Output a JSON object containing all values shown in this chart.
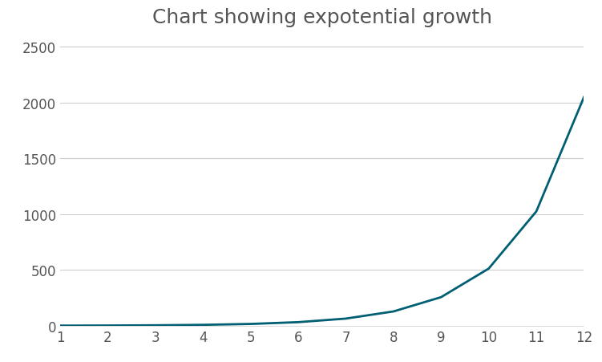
{
  "title": "Chart showing expotential growth",
  "x": [
    1,
    2,
    3,
    4,
    5,
    6,
    7,
    8,
    9,
    10,
    11,
    12
  ],
  "y": [
    1,
    2,
    4,
    8,
    16,
    32,
    64,
    128,
    256,
    512,
    1024,
    2048
  ],
  "line_color": "#005f73",
  "line_width": 2.0,
  "xlim": [
    1,
    12
  ],
  "ylim": [
    0,
    2600
  ],
  "yticks": [
    0,
    500,
    1000,
    1500,
    2000,
    2500
  ],
  "xticks": [
    1,
    2,
    3,
    4,
    5,
    6,
    7,
    8,
    9,
    10,
    11,
    12
  ],
  "title_fontsize": 18,
  "tick_fontsize": 12,
  "background_color": "#ffffff",
  "grid_color": "#cccccc",
  "title_color": "#555555"
}
